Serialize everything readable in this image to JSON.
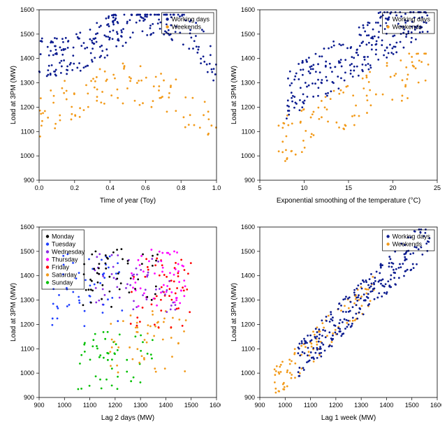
{
  "colors": {
    "working": "#0b1b8f",
    "weekend": "#f29a1a",
    "mon": "#000000",
    "tue": "#1f3fff",
    "wed": "#8a2be2",
    "thu": "#ff00ff",
    "fri": "#ff0000",
    "sat": "#f29a1a",
    "sun": "#00c000",
    "axis": "#000000",
    "bg": "#ffffff"
  },
  "fontsize": {
    "axis_label": 10,
    "tick": 9,
    "legend": 9
  },
  "marker": {
    "size": 1.4,
    "alpha": 1.0
  },
  "panels": {
    "tl": {
      "type": "scatter",
      "xlabel": "Time of year (Toy)",
      "ylabel": "Load at 3PM (MW)",
      "xlim": [
        0.0,
        1.0
      ],
      "ylim": [
        900,
        1600
      ],
      "xticks": [
        0.0,
        0.2,
        0.4,
        0.6,
        0.8,
        1.0
      ],
      "yticks": [
        900,
        1000,
        1100,
        1200,
        1300,
        1400,
        1500,
        1600
      ],
      "legend": {
        "pos": "topright",
        "items": [
          "Working days",
          "Weekends"
        ],
        "keys": [
          "working",
          "weekend"
        ]
      }
    },
    "tr": {
      "type": "scatter",
      "xlabel": "Exponential smoothing of the temperature (°C)",
      "ylabel": "Load at 3PM (MW)",
      "xlim": [
        5,
        25
      ],
      "ylim": [
        900,
        1600
      ],
      "xticks": [
        5,
        10,
        15,
        20,
        25
      ],
      "yticks": [
        900,
        1000,
        1100,
        1200,
        1300,
        1400,
        1500,
        1600
      ],
      "legend": {
        "pos": "topright",
        "items": [
          "Working days",
          "Weekends"
        ],
        "keys": [
          "working",
          "weekend"
        ]
      }
    },
    "bl": {
      "type": "scatter",
      "xlabel": "Lag 2 days (MW)",
      "ylabel": "Load at 3PM (MW)",
      "xlim": [
        900,
        1600
      ],
      "ylim": [
        900,
        1600
      ],
      "xticks": [
        900,
        1000,
        1100,
        1200,
        1300,
        1400,
        1500,
        1600
      ],
      "yticks": [
        900,
        1000,
        1100,
        1200,
        1300,
        1400,
        1500,
        1600
      ],
      "legend": {
        "pos": "topleft",
        "items": [
          "Monday",
          "Tuesday",
          "Wednesday",
          "Thursday",
          "Friday",
          "Saturday",
          "Sunday"
        ],
        "keys": [
          "mon",
          "tue",
          "wed",
          "thu",
          "fri",
          "sat",
          "sun"
        ]
      }
    },
    "br": {
      "type": "scatter",
      "xlabel": "Lag 1 week (MW)",
      "ylabel": "Load at 3PM (MW)",
      "xlim": [
        900,
        1600
      ],
      "ylim": [
        900,
        1600
      ],
      "xticks": [
        900,
        1000,
        1100,
        1200,
        1300,
        1400,
        1500,
        1600
      ],
      "yticks": [
        900,
        1000,
        1100,
        1200,
        1300,
        1400,
        1500,
        1600
      ],
      "legend": {
        "pos": "topright",
        "items": [
          "Working days",
          "Weekends"
        ],
        "keys": [
          "working",
          "weekend"
        ]
      }
    }
  },
  "seeds": {
    "tl": 11,
    "tr": 23,
    "bl": 37,
    "br": 51
  },
  "n": {
    "working": 260,
    "weekend": 105,
    "perday": 52
  }
}
